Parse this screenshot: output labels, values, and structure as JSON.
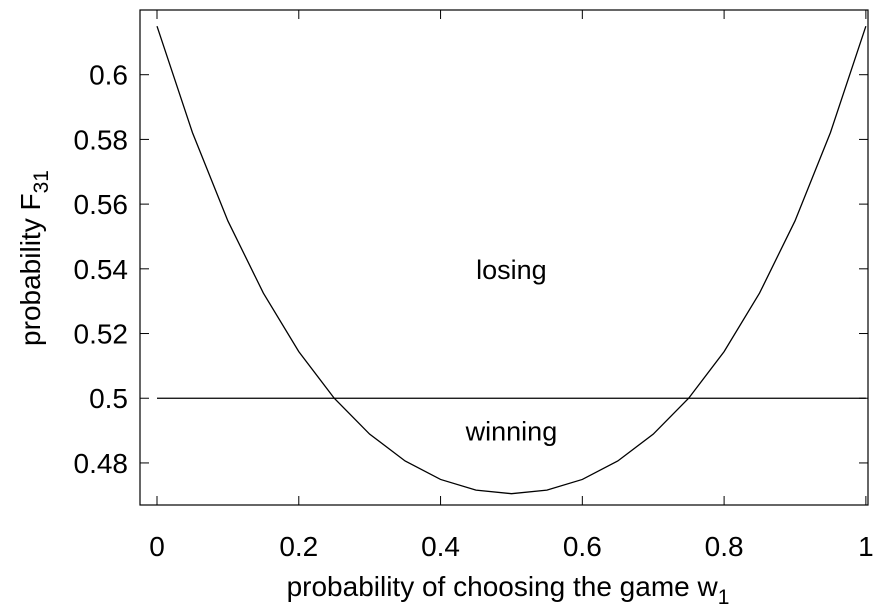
{
  "chart_data": {
    "type": "line",
    "x": [
      0,
      0.05,
      0.1,
      0.15,
      0.2,
      0.25,
      0.3,
      0.35,
      0.4,
      0.45,
      0.5,
      0.55,
      0.6,
      0.65,
      0.7,
      0.75,
      0.8,
      0.85,
      0.9,
      0.95,
      1
    ],
    "series": [
      {
        "color": "#000000",
        "values": [
          0.615,
          0.5821,
          0.5548,
          0.5325,
          0.5144,
          0.5,
          0.4889,
          0.4806,
          0.4749,
          0.4716,
          0.4705,
          0.4716,
          0.4749,
          0.4806,
          0.4889,
          0.5,
          0.5144,
          0.5325,
          0.5548,
          0.5821,
          0.615
        ]
      },
      {
        "color": "#000000",
        "values": [
          0.5,
          0.5,
          0.5,
          0.5,
          0.5,
          0.5,
          0.5,
          0.5,
          0.5,
          0.5,
          0.5,
          0.5,
          0.5,
          0.5,
          0.5,
          0.5,
          0.5,
          0.5,
          0.5,
          0.5,
          0.5
        ]
      }
    ],
    "xlabel": {
      "text": "probability of choosing the game w",
      "sub": "1"
    },
    "ylabel": {
      "text": "probability F",
      "sub": "31"
    },
    "annotations": [
      {
        "text": "losing",
        "x": 0.5,
        "y": 0.54
      },
      {
        "text": "winning",
        "x": 0.5,
        "y": 0.49
      }
    ],
    "xlim": [
      -0.024,
      1.003
    ],
    "xticks": [
      0,
      0.2,
      0.4,
      0.6,
      0.8,
      1
    ],
    "ylim": [
      0.467,
      0.62
    ],
    "yticks": [
      0.48,
      0.5,
      0.52,
      0.54,
      0.56,
      0.58,
      0.6
    ]
  }
}
